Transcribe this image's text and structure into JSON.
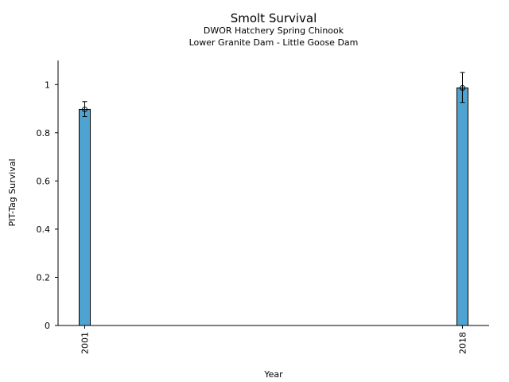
{
  "chart_data": {
    "type": "bar",
    "title": "Smolt Survival",
    "subtitles": [
      "DWOR Hatchery Spring Chinook",
      "Lower Granite Dam - Little Goose Dam"
    ],
    "xlabel": "Year",
    "ylabel": "PIT-Tag Survival",
    "x_range": [
      1999.8,
      2019.2
    ],
    "ylim": [
      0,
      1.1
    ],
    "y_ticks": [
      0,
      0.2,
      0.4,
      0.6,
      0.8,
      1
    ],
    "y_tick_labels": [
      "0",
      "0.2",
      "0.4",
      "0.6",
      "0.8",
      "1"
    ],
    "categories": [
      "2001",
      "2018"
    ],
    "x": [
      2001,
      2018
    ],
    "values": [
      0.897,
      0.986
    ],
    "error_low": [
      0.867,
      0.926
    ],
    "error_high": [
      0.929,
      1.05
    ],
    "bar_color": "#4fa3d1",
    "grid": false,
    "legend": "none"
  }
}
